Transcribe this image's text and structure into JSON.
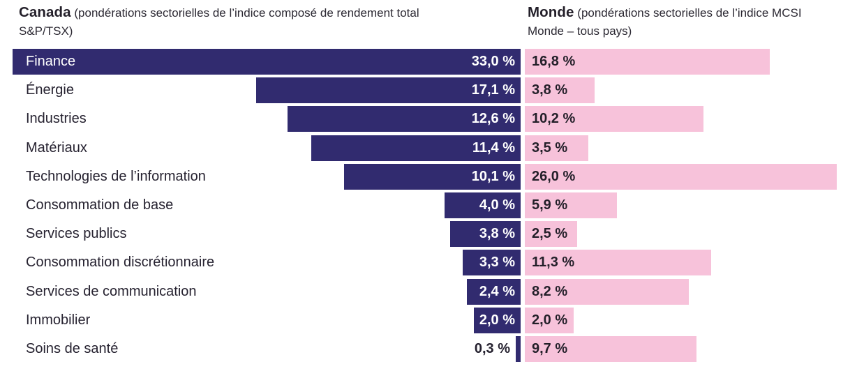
{
  "canada_header": {
    "title": "Canada",
    "subtitle": "(pondérations sectorielles de l’indice composé de rendement total S&P/TSX)"
  },
  "monde_header": {
    "title": "Monde",
    "subtitle": "(pondérations sectorielles de l’indice MCSI Monde – tous pays)"
  },
  "colors": {
    "canada_bar": "#312b6f",
    "monde_bar": "#f7c2da",
    "text_dark": "#262230",
    "text_on_canada_bar": "#ffffff"
  },
  "chart_data": {
    "type": "bar",
    "orientation": "horizontal",
    "layout": "two-sided mirrored: Canada bars right-aligned toward center divider, Monde bars grow rightward from divider; no axes, no gridlines, no legend; values labeled on bars",
    "value_format": "percent with French decimal comma",
    "categories": [
      "Finance",
      "Énergie",
      "Industries",
      "Matériaux",
      "Technologies de l’information",
      "Consommation de base",
      "Services publics",
      "Consommation discrétionnaire",
      "Services de communication",
      "Immobilier",
      "Soins de santé"
    ],
    "series": [
      {
        "name": "Canada",
        "description": "pondérations sectorielles de l’indice composé de rendement total S&P/TSX",
        "color": "#312b6f",
        "values": [
          33.0,
          17.1,
          12.6,
          11.4,
          10.1,
          4.0,
          3.8,
          3.3,
          2.4,
          2.0,
          0.3
        ]
      },
      {
        "name": "Monde",
        "description": "pondérations sectorielles de l’indice MCSI Monde – tous pays",
        "color": "#f7c2da",
        "values": [
          16.8,
          3.8,
          10.2,
          3.5,
          26.0,
          5.9,
          2.5,
          11.3,
          8.2,
          2.0,
          9.7
        ]
      }
    ]
  },
  "rows": [
    {
      "label": "Finance",
      "canada_value": "33,0 %",
      "monde_value": "16,8 %",
      "canada_style": "width:728px",
      "monde_style": "width:351px"
    },
    {
      "label": "Énergie",
      "canada_value": "17,1 %",
      "monde_value": "3,8 %",
      "canada_style": "width:379px",
      "monde_style": "width:100px"
    },
    {
      "label": "Industries",
      "canada_value": "12,6 %",
      "monde_value": "10,2 %",
      "canada_style": "width:334px",
      "monde_style": "width:256px"
    },
    {
      "label": "Matériaux",
      "canada_value": "11,4 %",
      "monde_value": "3,5 %",
      "canada_style": "width:300px",
      "monde_style": "width:91px"
    },
    {
      "label": "Technologies de l’information",
      "canada_value": "10,1 %",
      "monde_value": "26,0 %",
      "canada_style": "width:253px",
      "monde_style": "width:447px"
    },
    {
      "label": "Consommation de base",
      "canada_value": "4,0 %",
      "monde_value": "5,9 %",
      "canada_style": "width:109px",
      "monde_style": "width:132px"
    },
    {
      "label": "Services publics",
      "canada_value": "3,8 %",
      "monde_value": "2,5 %",
      "canada_style": "width:101px",
      "monde_style": "width:75px"
    },
    {
      "label": "Consommation discrétionnaire",
      "canada_value": "3,3 %",
      "monde_value": "11,3 %",
      "canada_style": "width:83px",
      "monde_style": "width:267px"
    },
    {
      "label": "Services de communication",
      "canada_value": "2,4 %",
      "monde_value": "8,2 %",
      "canada_style": "width:77px",
      "monde_style": "width:235px"
    },
    {
      "label": "Immobilier",
      "canada_value": "2,0 %",
      "monde_value": "2,0 %",
      "canada_style": "width:67px",
      "monde_style": "width:70px"
    },
    {
      "label": "Soins de santé",
      "canada_value": "0,3 %",
      "monde_value": "9,7 %",
      "canada_style": "width:7px",
      "monde_style": "width:246px"
    }
  ]
}
